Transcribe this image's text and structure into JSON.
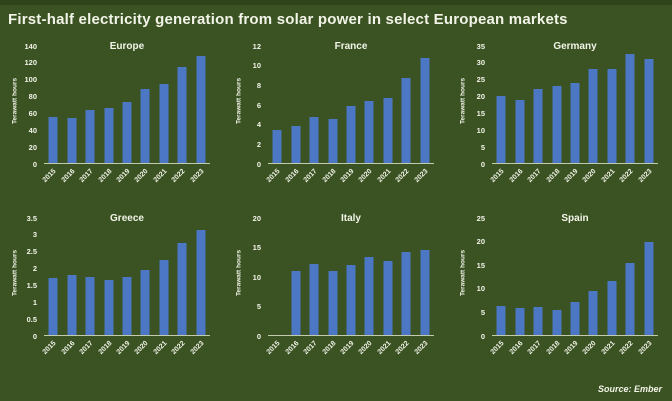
{
  "page_title": "First-half electricity generation from solar power in select European markets",
  "source_note": "Source: Ember",
  "colors": {
    "background": "#3b5323",
    "bar": "#4b77c5",
    "text": "#f2f4e8",
    "axis_line": "#c2cbae"
  },
  "chart_data": [
    {
      "type": "bar",
      "title": "Europe",
      "ylabel": "Terawatt hours",
      "categories": [
        "2015",
        "2016",
        "2017",
        "2018",
        "2019",
        "2020",
        "2021",
        "2022",
        "2023"
      ],
      "values": [
        55,
        54,
        63,
        66,
        73,
        88,
        95,
        115,
        128
      ],
      "ylim": [
        0,
        140
      ],
      "ytick_step": 20,
      "grid": false,
      "legend": false
    },
    {
      "type": "bar",
      "title": "France",
      "ylabel": "Terawatt hours",
      "categories": [
        "2015",
        "2016",
        "2017",
        "2018",
        "2019",
        "2020",
        "2021",
        "2022",
        "2023"
      ],
      "values": [
        3.4,
        3.8,
        4.7,
        4.5,
        5.8,
        6.4,
        6.7,
        8.7,
        10.8
      ],
      "ylim": [
        0,
        12
      ],
      "ytick_step": 2,
      "grid": false,
      "legend": false
    },
    {
      "type": "bar",
      "title": "Germany",
      "ylabel": "Terawatt hours",
      "categories": [
        "2015",
        "2016",
        "2017",
        "2018",
        "2019",
        "2020",
        "2021",
        "2022",
        "2023"
      ],
      "values": [
        20,
        19,
        22,
        23,
        24,
        28,
        28,
        32.5,
        31
      ],
      "ylim": [
        0,
        35
      ],
      "ytick_step": 5,
      "grid": false,
      "legend": false
    },
    {
      "type": "bar",
      "title": "Greece",
      "ylabel": "Terawatt hours",
      "categories": [
        "2015",
        "2016",
        "2017",
        "2018",
        "2019",
        "2020",
        "2021",
        "2022",
        "2023"
      ],
      "values": [
        1.7,
        1.8,
        1.75,
        1.65,
        1.75,
        1.95,
        2.25,
        2.75,
        3.15
      ],
      "ylim": [
        0,
        3.5
      ],
      "ytick_step": 0.5,
      "grid": false,
      "legend": false
    },
    {
      "type": "bar",
      "title": "Italy",
      "ylabel": "Terawatt hours",
      "categories": [
        "2015",
        "2016",
        "2017",
        "2018",
        "2019",
        "2020",
        "2021",
        "2022",
        "2023"
      ],
      "values": [
        null,
        11,
        12.2,
        11,
        12,
        13.3,
        12.7,
        14.2,
        14.6
      ],
      "ylim": [
        0,
        20
      ],
      "ytick_step": 5,
      "grid": false,
      "legend": false
    },
    {
      "type": "bar",
      "title": "Spain",
      "ylabel": "Terawatt hours",
      "categories": [
        "2015",
        "2016",
        "2017",
        "2018",
        "2019",
        "2020",
        "2021",
        "2022",
        "2023"
      ],
      "values": [
        6.2,
        5.8,
        6.0,
        5.4,
        7.0,
        9.3,
        11.6,
        15.3,
        19.8
      ],
      "ylim": [
        0,
        25
      ],
      "ytick_step": 5,
      "grid": false,
      "legend": false
    }
  ]
}
